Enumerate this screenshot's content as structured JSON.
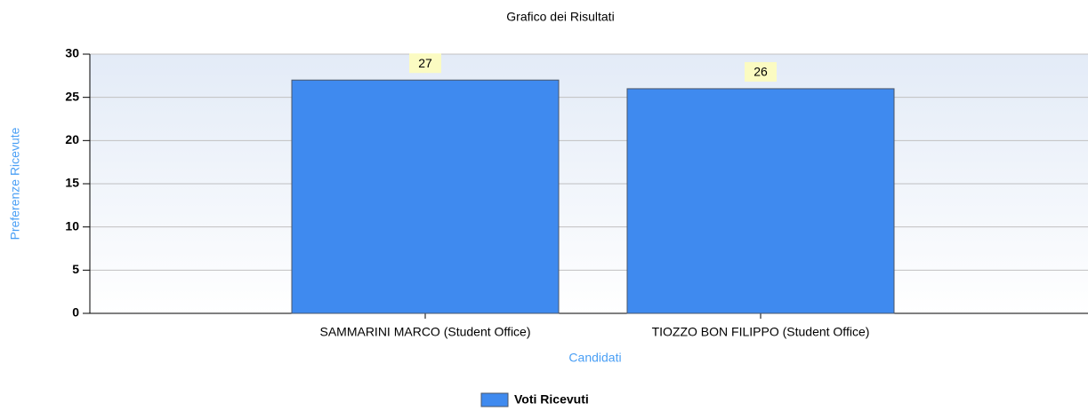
{
  "chart_data": {
    "type": "bar",
    "title": "Grafico dei Risultati",
    "x_label": "Candidati",
    "y_label": "Preferenze Ricevute",
    "categories": [
      "SAMMARINI MARCO (Student Office)",
      "TIOZZO BON FILIPPO (Student Office)"
    ],
    "series": [
      {
        "name": "Voti Ricevuti",
        "color": "#3f8aef",
        "values": [
          27,
          26
        ]
      }
    ],
    "ylim": [
      0,
      30
    ],
    "yticks": [
      0,
      5,
      10,
      15,
      20,
      25,
      30
    ],
    "grid": true
  }
}
